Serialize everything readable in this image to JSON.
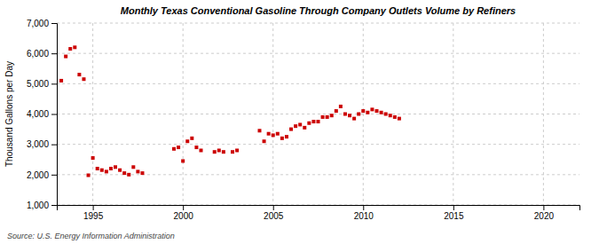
{
  "chart_data": {
    "type": "scatter",
    "title": "Monthly Texas Conventional Gasoline Through Company Outlets Volume by Refiners",
    "ylabel": "Thousand Gallons per Day",
    "source": "Source: U.S. Energy Information Administration",
    "color": "#cc0000",
    "marker": "square",
    "grid": true,
    "xlim": [
      1993.0,
      2022.0
    ],
    "ylim": [
      1000,
      7000
    ],
    "xticks": [
      1995,
      2000,
      2005,
      2010,
      2015,
      2020
    ],
    "yticks": [
      {
        "value": 1000,
        "label": "1,000"
      },
      {
        "value": 2000,
        "label": "2,000"
      },
      {
        "value": 3000,
        "label": "3,000"
      },
      {
        "value": 4000,
        "label": "4,000"
      },
      {
        "value": 5000,
        "label": "5,000"
      },
      {
        "value": 6000,
        "label": "6,000"
      },
      {
        "value": 7000,
        "label": "7,000"
      }
    ],
    "x": [
      1993.25,
      1993.5,
      1993.75,
      1994.0,
      1994.25,
      1994.5,
      1994.75,
      1995.0,
      1995.25,
      1995.5,
      1995.75,
      1996.0,
      1996.25,
      1996.5,
      1996.75,
      1997.0,
      1997.25,
      1997.5,
      1997.75,
      1999.5,
      1999.75,
      2000.0,
      2000.25,
      2000.5,
      2000.75,
      2001.0,
      2001.75,
      2002.0,
      2002.25,
      2002.75,
      2003.0,
      2004.25,
      2004.5,
      2004.75,
      2005.0,
      2005.25,
      2005.5,
      2005.75,
      2006.0,
      2006.25,
      2006.5,
      2006.75,
      2007.0,
      2007.25,
      2007.5,
      2007.75,
      2008.0,
      2008.25,
      2008.5,
      2008.75,
      2009.0,
      2009.25,
      2009.5,
      2009.75,
      2010.0,
      2010.25,
      2010.5,
      2010.75,
      2011.0,
      2011.25,
      2011.5,
      2011.75,
      2012.0
    ],
    "values": [
      5100,
      5900,
      6150,
      6200,
      5300,
      5150,
      1980,
      2550,
      2200,
      2150,
      2100,
      2200,
      2250,
      2150,
      2050,
      2000,
      2250,
      2100,
      2050,
      2850,
      2900,
      2450,
      3100,
      3200,
      2900,
      2800,
      2750,
      2800,
      2750,
      2750,
      2800,
      3450,
      3100,
      3350,
      3300,
      3350,
      3200,
      3250,
      3500,
      3600,
      3650,
      3550,
      3700,
      3750,
      3750,
      3900,
      3900,
      3950,
      4100,
      4250,
      4000,
      3950,
      3850,
      4000,
      4100,
      4050,
      4150,
      4100,
      4050,
      4000,
      3950,
      3900,
      3850
    ]
  }
}
